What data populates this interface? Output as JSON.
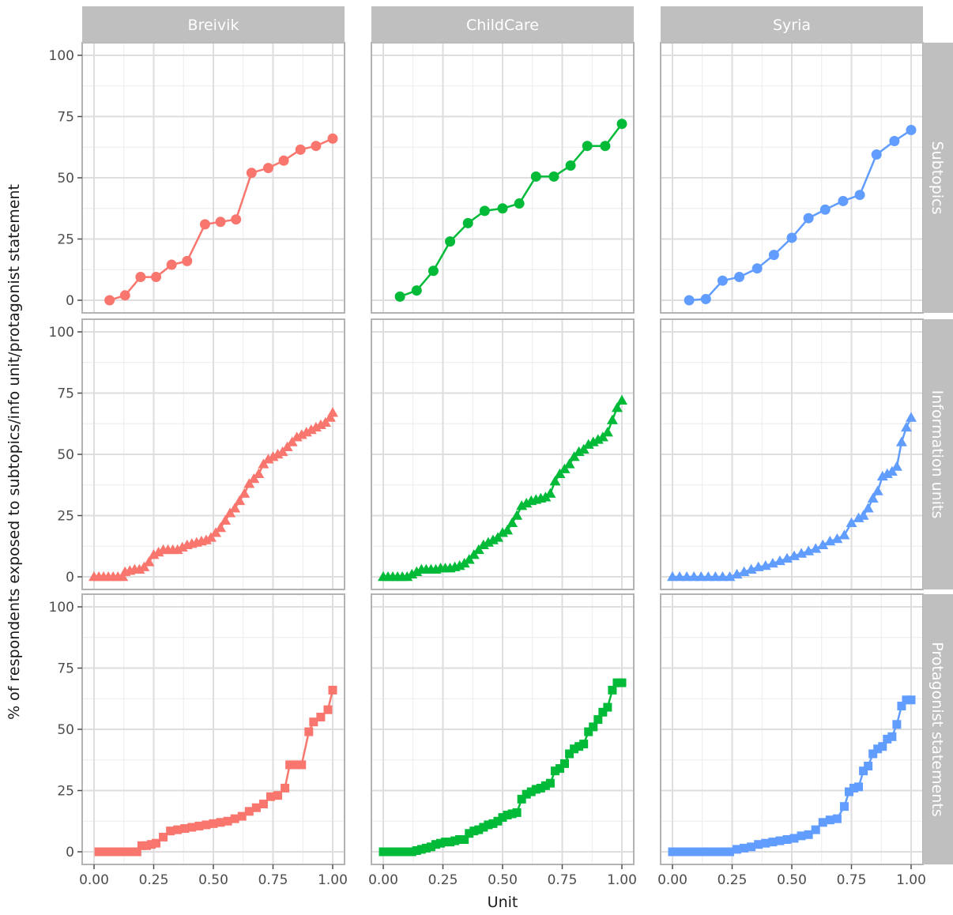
{
  "chart_data": {
    "type": "line",
    "xlabel": "Unit",
    "ylabel": "% of respondents exposed to subtopics/info unit/protagonist statement",
    "xlim": [
      0,
      1
    ],
    "ylim": [
      0,
      100
    ],
    "x_ticks": [
      "0.00",
      "0.25",
      "0.50",
      "0.75",
      "1.00"
    ],
    "y_ticks": [
      "0",
      "25",
      "50",
      "75",
      "100"
    ],
    "grid": true,
    "columns": [
      {
        "name": "Breivik",
        "color": "#F8766D"
      },
      {
        "name": "ChildCare",
        "color": "#00BA38"
      },
      {
        "name": "Syria",
        "color": "#619CFF"
      }
    ],
    "rows": [
      {
        "name": "Subtopics",
        "marker": "circle"
      },
      {
        "name": "Information units",
        "marker": "triangle"
      },
      {
        "name": "Protagonist statements",
        "marker": "square"
      }
    ],
    "panels": [
      {
        "column": "Breivik",
        "row": "Subtopics",
        "x": [
          0.065,
          0.13,
          0.195,
          0.26,
          0.325,
          0.39,
          0.465,
          0.53,
          0.595,
          0.66,
          0.73,
          0.795,
          0.865,
          0.93,
          1.0
        ],
        "y": [
          0,
          2,
          9.5,
          9.5,
          14.5,
          16,
          31,
          32,
          33,
          52,
          54,
          57,
          61.5,
          63,
          66
        ]
      },
      {
        "column": "Breivik",
        "row": "Information units",
        "x": [
          0.0,
          0.02,
          0.04,
          0.06,
          0.08,
          0.1,
          0.12,
          0.13,
          0.15,
          0.17,
          0.19,
          0.21,
          0.23,
          0.25,
          0.27,
          0.29,
          0.31,
          0.33,
          0.35,
          0.37,
          0.39,
          0.41,
          0.43,
          0.45,
          0.47,
          0.49,
          0.51,
          0.53,
          0.55,
          0.57,
          0.59,
          0.61,
          0.63,
          0.65,
          0.67,
          0.69,
          0.71,
          0.73,
          0.75,
          0.77,
          0.79,
          0.81,
          0.83,
          0.85,
          0.87,
          0.89,
          0.91,
          0.93,
          0.95,
          0.97,
          0.99,
          1.0
        ],
        "y": [
          0,
          0,
          0,
          0,
          0,
          0,
          0,
          2,
          2.5,
          3,
          3,
          4,
          6,
          9,
          10,
          11,
          11,
          11,
          11,
          12,
          13,
          13.5,
          14,
          14.5,
          15,
          16,
          18,
          20,
          23,
          26,
          28,
          31,
          34,
          38,
          40,
          42,
          46,
          48,
          49,
          50,
          51,
          53,
          55,
          57,
          58,
          59,
          60,
          61,
          62,
          63,
          65,
          67
        ]
      },
      {
        "column": "Breivik",
        "row": "Protagonist statements",
        "x": [
          0.02,
          0.04,
          0.06,
          0.08,
          0.1,
          0.12,
          0.14,
          0.16,
          0.18,
          0.2,
          0.22,
          0.24,
          0.26,
          0.29,
          0.32,
          0.35,
          0.38,
          0.41,
          0.44,
          0.47,
          0.5,
          0.53,
          0.56,
          0.59,
          0.62,
          0.65,
          0.68,
          0.71,
          0.74,
          0.77,
          0.8,
          0.82,
          0.84,
          0.87,
          0.9,
          0.92,
          0.95,
          0.98,
          1.0
        ],
        "y": [
          0,
          0,
          0,
          0,
          0,
          0,
          0,
          0,
          0,
          2.5,
          2.5,
          3,
          3.5,
          6,
          8.5,
          9,
          9.5,
          10,
          10.5,
          11,
          11.5,
          12,
          12.5,
          13.5,
          14.5,
          16.5,
          18,
          19.5,
          22.5,
          23,
          26,
          35.5,
          35.5,
          35.5,
          49,
          53,
          55,
          58,
          66
        ]
      },
      {
        "column": "ChildCare",
        "row": "Subtopics",
        "x": [
          0.07,
          0.14,
          0.21,
          0.28,
          0.355,
          0.425,
          0.5,
          0.57,
          0.64,
          0.715,
          0.785,
          0.855,
          0.93,
          1.0
        ],
        "y": [
          1.5,
          4,
          12,
          24,
          31.5,
          36.5,
          37.5,
          39.5,
          50.5,
          50.5,
          55,
          63,
          63,
          72
        ]
      },
      {
        "column": "ChildCare",
        "row": "Information units",
        "x": [
          0.0,
          0.02,
          0.04,
          0.06,
          0.08,
          0.1,
          0.12,
          0.14,
          0.16,
          0.18,
          0.2,
          0.22,
          0.24,
          0.26,
          0.28,
          0.3,
          0.32,
          0.34,
          0.36,
          0.38,
          0.4,
          0.42,
          0.44,
          0.46,
          0.48,
          0.5,
          0.52,
          0.54,
          0.56,
          0.58,
          0.6,
          0.62,
          0.64,
          0.66,
          0.68,
          0.7,
          0.72,
          0.74,
          0.76,
          0.78,
          0.8,
          0.82,
          0.84,
          0.86,
          0.88,
          0.9,
          0.92,
          0.94,
          0.96,
          0.98,
          1.0
        ],
        "y": [
          0,
          0,
          0,
          0,
          0,
          0,
          1,
          2,
          3,
          3,
          3,
          3,
          3.5,
          3.5,
          3.5,
          4,
          4.5,
          5.5,
          7,
          9,
          11,
          13,
          14,
          15,
          16,
          18,
          19,
          22,
          25,
          29,
          30,
          31,
          31.5,
          32,
          32.5,
          34,
          39,
          42,
          44,
          46,
          49,
          51,
          52,
          54,
          55,
          56,
          57,
          59,
          64,
          69,
          72
        ]
      },
      {
        "column": "ChildCare",
        "row": "Protagonist statements",
        "x": [
          0.0,
          0.02,
          0.04,
          0.06,
          0.08,
          0.1,
          0.12,
          0.14,
          0.16,
          0.18,
          0.2,
          0.22,
          0.24,
          0.26,
          0.28,
          0.3,
          0.32,
          0.34,
          0.36,
          0.38,
          0.4,
          0.42,
          0.44,
          0.46,
          0.48,
          0.5,
          0.52,
          0.54,
          0.56,
          0.58,
          0.6,
          0.62,
          0.64,
          0.66,
          0.68,
          0.7,
          0.72,
          0.74,
          0.76,
          0.78,
          0.8,
          0.82,
          0.84,
          0.86,
          0.88,
          0.9,
          0.92,
          0.94,
          0.96,
          0.98,
          1.0
        ],
        "y": [
          0,
          0,
          0,
          0,
          0,
          0,
          0,
          0.5,
          1,
          1.5,
          2,
          3,
          3.5,
          4,
          4,
          4.5,
          5,
          5,
          7.5,
          8.5,
          9,
          10,
          11,
          11.5,
          12.5,
          14,
          15,
          15.5,
          16,
          21.5,
          23.5,
          24.5,
          25.5,
          26,
          27,
          28,
          33,
          34,
          36,
          40,
          42,
          43,
          44,
          49,
          51,
          54,
          57,
          59,
          66,
          69,
          69
        ]
      },
      {
        "column": "Syria",
        "row": "Subtopics",
        "x": [
          0.07,
          0.14,
          0.21,
          0.28,
          0.355,
          0.425,
          0.5,
          0.57,
          0.64,
          0.715,
          0.785,
          0.855,
          0.93,
          1.0
        ],
        "y": [
          0,
          0.5,
          8,
          9.5,
          13,
          18.5,
          25.5,
          33.5,
          37,
          40.5,
          43,
          59.5,
          65,
          69.5
        ]
      },
      {
        "column": "Syria",
        "row": "Information units",
        "x": [
          0.0,
          0.03,
          0.06,
          0.09,
          0.12,
          0.15,
          0.18,
          0.21,
          0.24,
          0.27,
          0.3,
          0.33,
          0.36,
          0.39,
          0.42,
          0.45,
          0.48,
          0.51,
          0.54,
          0.57,
          0.6,
          0.63,
          0.66,
          0.69,
          0.72,
          0.75,
          0.78,
          0.8,
          0.82,
          0.84,
          0.86,
          0.88,
          0.9,
          0.92,
          0.94,
          0.96,
          0.98,
          1.0
        ],
        "y": [
          0,
          0,
          0,
          0,
          0,
          0,
          0,
          0,
          0,
          1,
          2,
          3,
          4,
          4.5,
          5.5,
          6.5,
          7.5,
          8.5,
          9.5,
          10.5,
          11.5,
          13,
          14.5,
          15.5,
          17,
          22,
          24,
          25,
          28,
          32,
          35,
          41,
          42,
          43,
          45,
          55,
          61,
          65
        ]
      },
      {
        "column": "Syria",
        "row": "Protagonist statements",
        "x": [
          0.0,
          0.03,
          0.06,
          0.09,
          0.12,
          0.15,
          0.18,
          0.21,
          0.24,
          0.27,
          0.3,
          0.33,
          0.36,
          0.39,
          0.42,
          0.45,
          0.48,
          0.51,
          0.54,
          0.57,
          0.6,
          0.63,
          0.66,
          0.69,
          0.72,
          0.74,
          0.76,
          0.78,
          0.8,
          0.82,
          0.84,
          0.86,
          0.88,
          0.9,
          0.92,
          0.94,
          0.96,
          0.98,
          1.0
        ],
        "y": [
          0,
          0,
          0,
          0,
          0,
          0,
          0,
          0,
          0,
          1,
          1.5,
          2,
          3,
          3.5,
          4,
          4.5,
          5,
          5.5,
          6.5,
          7,
          9,
          12,
          13,
          13.5,
          18.5,
          24.5,
          26,
          26.5,
          33,
          35,
          40,
          42,
          43,
          46,
          47,
          52,
          59.5,
          62,
          62
        ]
      }
    ]
  }
}
